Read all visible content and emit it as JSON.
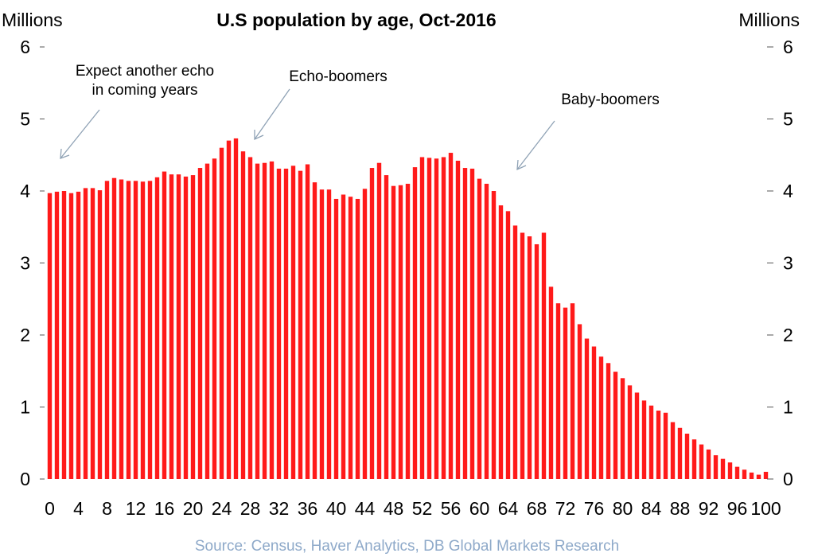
{
  "chart_data": {
    "type": "bar",
    "title": "U.S population by age, Oct-2016",
    "ylabel_left": "Millions",
    "ylabel_right": "Millions",
    "ylim": [
      0,
      6
    ],
    "yticks": [
      0,
      1,
      2,
      3,
      4,
      5,
      6
    ],
    "xticks": [
      "0",
      "4",
      "8",
      "12",
      "16",
      "20",
      "24",
      "28",
      "32",
      "36",
      "40",
      "44",
      "48",
      "52",
      "56",
      "60",
      "64",
      "68",
      "72",
      "76",
      "80",
      "84",
      "88",
      "92",
      "96",
      "100"
    ],
    "bar_color": "#ff1a1a",
    "ages": [
      0,
      1,
      2,
      3,
      4,
      5,
      6,
      7,
      8,
      9,
      10,
      11,
      12,
      13,
      14,
      15,
      16,
      17,
      18,
      19,
      20,
      21,
      22,
      23,
      24,
      25,
      26,
      27,
      28,
      29,
      30,
      31,
      32,
      33,
      34,
      35,
      36,
      37,
      38,
      39,
      40,
      41,
      42,
      43,
      44,
      45,
      46,
      47,
      48,
      49,
      50,
      51,
      52,
      53,
      54,
      55,
      56,
      57,
      58,
      59,
      60,
      61,
      62,
      63,
      64,
      65,
      66,
      67,
      68,
      69,
      70,
      71,
      72,
      73,
      74,
      75,
      76,
      77,
      78,
      79,
      80,
      81,
      82,
      83,
      84,
      85,
      86,
      87,
      88,
      89,
      90,
      91,
      92,
      93,
      94,
      95,
      96,
      97,
      98,
      99,
      100
    ],
    "values": [
      3.97,
      3.99,
      4.0,
      3.97,
      3.99,
      4.04,
      4.04,
      4.01,
      4.14,
      4.18,
      4.16,
      4.14,
      4.14,
      4.13,
      4.14,
      4.19,
      4.27,
      4.23,
      4.23,
      4.2,
      4.22,
      4.32,
      4.38,
      4.45,
      4.6,
      4.7,
      4.73,
      4.55,
      4.47,
      4.38,
      4.39,
      4.41,
      4.31,
      4.31,
      4.35,
      4.28,
      4.37,
      4.12,
      4.02,
      4.02,
      3.89,
      3.95,
      3.92,
      3.89,
      4.03,
      4.32,
      4.39,
      4.22,
      4.07,
      4.08,
      4.1,
      4.33,
      4.47,
      4.46,
      4.45,
      4.47,
      4.53,
      4.42,
      4.32,
      4.31,
      4.17,
      4.1,
      4.0,
      3.8,
      3.72,
      3.52,
      3.42,
      3.37,
      3.26,
      3.42,
      2.67,
      2.44,
      2.38,
      2.44,
      2.15,
      1.95,
      1.84,
      1.7,
      1.61,
      1.49,
      1.4,
      1.3,
      1.2,
      1.09,
      1.02,
      0.95,
      0.92,
      0.79,
      0.71,
      0.63,
      0.55,
      0.48,
      0.41,
      0.33,
      0.28,
      0.23,
      0.17,
      0.13,
      0.09,
      0.06,
      0.1
    ],
    "annotations": [
      {
        "line1": "Expect another echo",
        "line2": "in coming years"
      },
      {
        "line1": "Echo-boomers",
        "line2": ""
      },
      {
        "line1": "Baby-boomers",
        "line2": ""
      }
    ]
  },
  "footer": {
    "source": "Source: Census, Haver Analytics, DB Global Markets Research"
  }
}
